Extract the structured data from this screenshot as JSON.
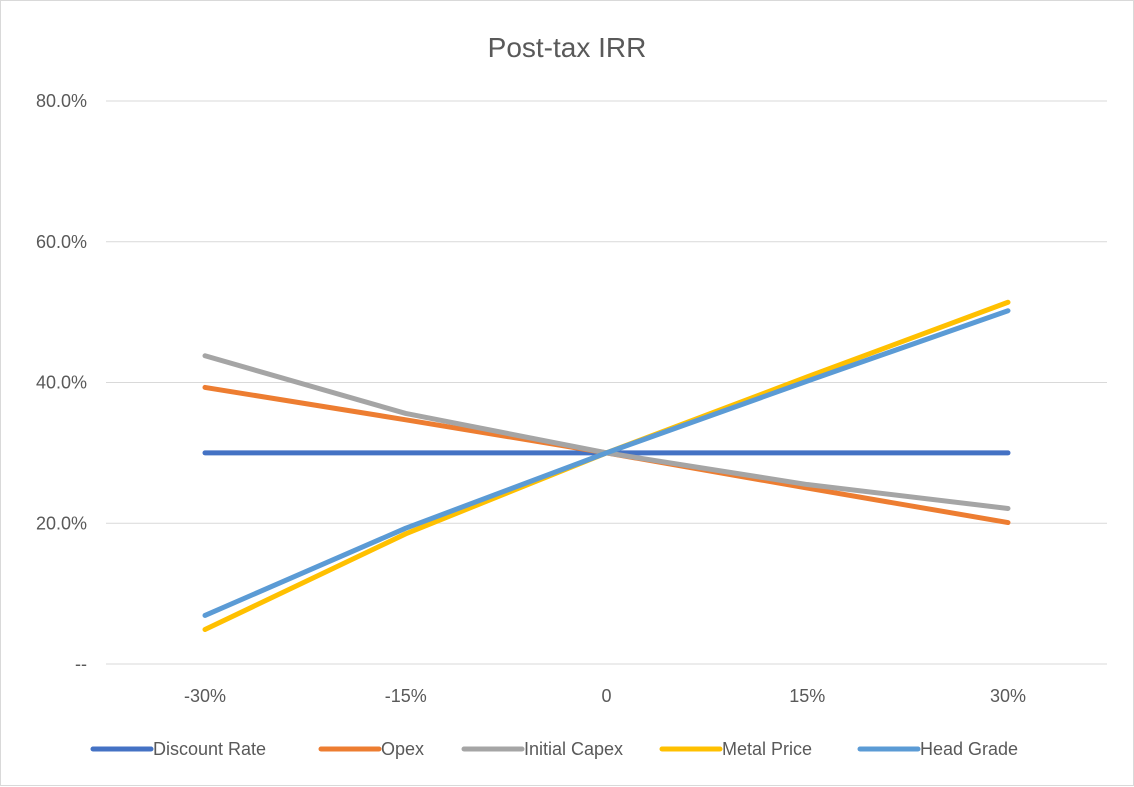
{
  "chart_data": {
    "type": "line",
    "title": "Post-tax IRR",
    "xlabel": "",
    "ylabel": "",
    "categories": [
      "-30%",
      "-15%",
      "0",
      "15%",
      "30%"
    ],
    "y_ticks": [
      {
        "value": 0,
        "label": "--"
      },
      {
        "value": 20,
        "label": "20.0%"
      },
      {
        "value": 40,
        "label": "40.0%"
      },
      {
        "value": 60,
        "label": "60.0%"
      },
      {
        "value": 80,
        "label": "80.0%"
      }
    ],
    "ylim": [
      0,
      80
    ],
    "grid": "horizontal",
    "legend_position": "bottom",
    "series": [
      {
        "name": "Discount Rate",
        "color": "#4472c4",
        "values": [
          30.0,
          30.0,
          30.0,
          30.0,
          30.0
        ]
      },
      {
        "name": "Opex",
        "color": "#ed7d31",
        "values": [
          39.3,
          34.7,
          30.0,
          25.0,
          20.1
        ]
      },
      {
        "name": "Initial Capex",
        "color": "#a5a5a5",
        "values": [
          43.8,
          35.6,
          30.0,
          25.5,
          22.1
        ]
      },
      {
        "name": "Metal Price",
        "color": "#ffc000",
        "values": [
          4.9,
          18.5,
          30.0,
          40.8,
          51.4
        ]
      },
      {
        "name": "Head Grade",
        "color": "#5b9bd5",
        "values": [
          6.9,
          19.3,
          30.0,
          40.2,
          50.2
        ]
      }
    ]
  }
}
